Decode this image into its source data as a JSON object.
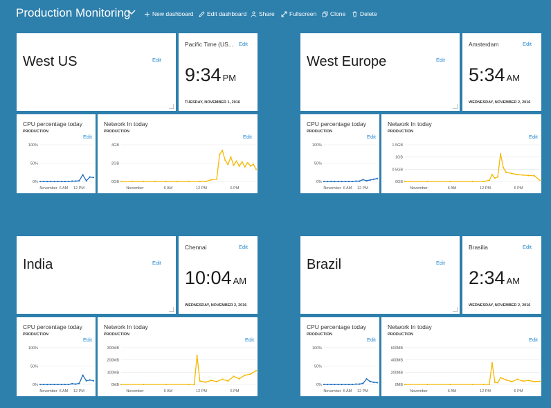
{
  "header": {
    "title": "Production Monitoring",
    "commands": [
      {
        "label": "New dashboard",
        "icon": "plus-icon"
      },
      {
        "label": "Edit dashboard",
        "icon": "pencil-icon"
      },
      {
        "label": "Share",
        "icon": "share-icon"
      },
      {
        "label": "Fullscreen",
        "icon": "fullscreen-icon"
      },
      {
        "label": "Clone",
        "icon": "clone-icon"
      },
      {
        "label": "Delete",
        "icon": "trash-icon"
      }
    ]
  },
  "colors": {
    "background": "#2d7fac",
    "cpu_line": "#1f6fbf",
    "network_line": "#f5b800",
    "edit_link": "#1e86d0"
  },
  "regions": [
    {
      "name": "West US",
      "edit": "Edit",
      "clock": {
        "tz": "Pacific Time (US...",
        "edit": "Edit",
        "time": "9:34",
        "ampm": "PM",
        "date": "TUESDAY, NOVEMBER 1, 2016"
      },
      "cpu": {
        "title": "CPU percentage today",
        "subtitle": "PRODUCTION",
        "edit": "Edit",
        "yticks": [
          "100%",
          "50%",
          "0%"
        ],
        "xticks": [
          "November",
          "6 AM",
          "12 PM"
        ]
      },
      "net": {
        "title": "Network In today",
        "subtitle": "PRODUCTION",
        "edit": "Edit",
        "yticks": [
          "4GB",
          "2GB",
          "0GB"
        ],
        "xticks": [
          "November",
          "6 AM",
          "12 PM",
          "6 PM"
        ]
      }
    },
    {
      "name": "West Europe",
      "edit": "Edit",
      "clock": {
        "tz": "Amsterdam",
        "edit": "Edit",
        "time": "5:34",
        "ampm": "AM",
        "date": "WEDNESDAY, NOVEMBER 2, 2016"
      },
      "cpu": {
        "title": "CPU percentage today",
        "subtitle": "PRODUCTION",
        "edit": "Edit",
        "yticks": [
          "100%",
          "50%",
          "0%"
        ],
        "xticks": [
          "November",
          "6 AM",
          "12 PM"
        ]
      },
      "net": {
        "title": "Network In today",
        "subtitle": "PRODUCTION",
        "edit": "Edit",
        "yticks": [
          "1.5GB",
          "1GB",
          "0.5GB",
          "0GB"
        ],
        "xticks": [
          "November",
          "6 AM",
          "12 PM",
          "6 PM"
        ]
      }
    },
    {
      "name": "India",
      "edit": "Edit",
      "clock": {
        "tz": "Chennai",
        "edit": "Edit",
        "time": "10:04",
        "ampm": "AM",
        "date": "WEDNESDAY, NOVEMBER 2, 2016"
      },
      "cpu": {
        "title": "CPU percentage today",
        "subtitle": "PRODUCTION",
        "edit": "Edit",
        "yticks": [
          "100%",
          "50%",
          "0%"
        ],
        "xticks": [
          "November",
          "6 AM",
          "12 PM"
        ]
      },
      "net": {
        "title": "Network In today",
        "subtitle": "PRODUCTION",
        "edit": "Edit",
        "yticks": [
          "300MB",
          "200MB",
          "100MB",
          "0MB"
        ],
        "xticks": [
          "November",
          "6 AM",
          "12 PM",
          "6 PM"
        ]
      }
    },
    {
      "name": "Brazil",
      "edit": "Edit",
      "clock": {
        "tz": "Brasilia",
        "edit": "Edit",
        "time": "2:34",
        "ampm": "AM",
        "date": "WEDNESDAY, NOVEMBER 2, 2016"
      },
      "cpu": {
        "title": "CPU percentage today",
        "subtitle": "PRODUCTION",
        "edit": "Edit",
        "yticks": [
          "100%",
          "50%",
          "0%"
        ],
        "xticks": [
          "November",
          "6 AM",
          "12 PM"
        ]
      },
      "net": {
        "title": "Network In today",
        "subtitle": "PRODUCTION",
        "edit": "Edit",
        "yticks": [
          "600MB",
          "400MB",
          "200MB",
          "0MB"
        ],
        "xticks": [
          "November",
          "6 AM",
          "12 PM",
          "6 PM"
        ]
      }
    }
  ],
  "chart_data": [
    {
      "type": "line",
      "chart": "West US CPU",
      "ylim": [
        0,
        100
      ],
      "x": [
        0,
        1,
        2,
        3,
        4,
        5,
        6,
        7,
        8,
        9,
        10,
        11,
        12,
        13,
        14,
        15
      ],
      "series": [
        {
          "values": [
            0,
            0,
            0,
            0,
            0,
            0,
            0,
            0,
            0,
            1,
            1,
            2,
            18,
            2,
            12,
            11
          ]
        }
      ]
    },
    {
      "type": "line",
      "chart": "West US Network",
      "ylim": [
        0,
        4.5
      ],
      "x": [
        0,
        2,
        4,
        6,
        8,
        10,
        12,
        14,
        15,
        16,
        17,
        17.5,
        18,
        18.5,
        19,
        19.5,
        20,
        20.5,
        21,
        21.5,
        22,
        22.5,
        23,
        23.5,
        24
      ],
      "series": [
        {
          "values": [
            0,
            0,
            0,
            0,
            0,
            0,
            0,
            0,
            0,
            0.2,
            0.3,
            3.3,
            3.8,
            2.6,
            2.1,
            3.0,
            2.0,
            2.5,
            1.9,
            2.4,
            1.8,
            2.3,
            1.9,
            2.1,
            1.5
          ]
        }
      ]
    },
    {
      "type": "line",
      "chart": "West Europe CPU",
      "ylim": [
        0,
        100
      ],
      "x": [
        0,
        1,
        2,
        3,
        4,
        5,
        6,
        7,
        8,
        9,
        10,
        11,
        12,
        13,
        14,
        15
      ],
      "series": [
        {
          "values": [
            0,
            0,
            0,
            0,
            0,
            0,
            0,
            0,
            0,
            1,
            1,
            5,
            2,
            4,
            6,
            8
          ]
        }
      ]
    },
    {
      "type": "line",
      "chart": "West Europe Network",
      "ylim": [
        0,
        1.6
      ],
      "x": [
        0,
        4,
        8,
        12,
        14,
        15,
        15.5,
        16,
        16.5,
        17,
        17.5,
        18,
        19,
        20,
        21,
        22,
        23,
        24
      ],
      "series": [
        {
          "values": [
            0,
            0,
            0,
            0,
            0,
            0.05,
            0.3,
            0.15,
            0.2,
            1.2,
            0.6,
            0.4,
            0.35,
            0.3,
            0.28,
            0.26,
            0.25,
            0.05
          ]
        }
      ]
    },
    {
      "type": "line",
      "chart": "India CPU",
      "ylim": [
        0,
        100
      ],
      "x": [
        0,
        1,
        2,
        3,
        4,
        5,
        6,
        7,
        8,
        9,
        10,
        11,
        12,
        13,
        14,
        15
      ],
      "series": [
        {
          "values": [
            0,
            0,
            0,
            0,
            0,
            0,
            0,
            0,
            0,
            2,
            1,
            3,
            25,
            10,
            12,
            10
          ]
        }
      ]
    },
    {
      "type": "line",
      "chart": "India Network",
      "ylim": [
        0,
        320
      ],
      "x": [
        0,
        4,
        8,
        12,
        13,
        13.5,
        14,
        15,
        16,
        17,
        18,
        19,
        20,
        21,
        22,
        23,
        24
      ],
      "series": [
        {
          "values": [
            0,
            0,
            0,
            0,
            0,
            250,
            30,
            20,
            35,
            25,
            45,
            30,
            70,
            50,
            80,
            90,
            120
          ]
        }
      ]
    },
    {
      "type": "line",
      "chart": "Brazil CPU",
      "ylim": [
        0,
        100
      ],
      "x": [
        0,
        1,
        2,
        3,
        4,
        5,
        6,
        7,
        8,
        9,
        10,
        11,
        12,
        13,
        14,
        15
      ],
      "series": [
        {
          "values": [
            0,
            0,
            0,
            0,
            0,
            0,
            0,
            0,
            0,
            1,
            1,
            3,
            15,
            8,
            6,
            5
          ]
        }
      ]
    },
    {
      "type": "line",
      "chart": "Brazil Network",
      "ylim": [
        0,
        650
      ],
      "x": [
        0,
        4,
        8,
        12,
        14,
        15,
        15.5,
        16,
        16.5,
        17,
        18,
        19,
        20,
        21,
        22,
        23,
        24
      ],
      "series": [
        {
          "values": [
            0,
            0,
            0,
            0,
            0,
            0,
            380,
            40,
            30,
            120,
            80,
            50,
            90,
            60,
            70,
            50,
            55
          ]
        }
      ]
    }
  ]
}
